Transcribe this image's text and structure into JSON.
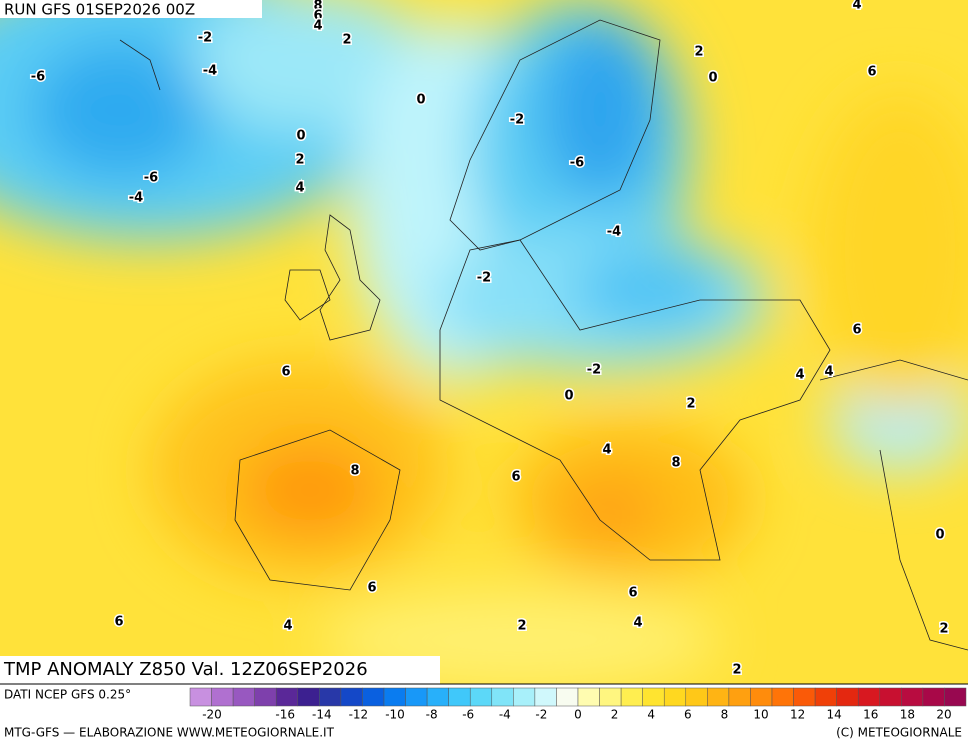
{
  "header": {
    "run": "RUN GFS 01SEP2026 00Z"
  },
  "map": {
    "contour_labels": [
      "8",
      "6",
      "4",
      "4",
      "-2",
      "2",
      "-4",
      "-6",
      "0",
      "0",
      "2",
      "-6",
      "-4",
      "4",
      "-2",
      "-6",
      "-4",
      "-2",
      "2",
      "0",
      "6",
      "6",
      "-2",
      "0",
      "2",
      "4",
      "4",
      "6",
      "8",
      "4",
      "8",
      "6",
      "0",
      "6",
      "6",
      "6",
      "4",
      "2",
      "4",
      "2",
      "2"
    ]
  },
  "footer": {
    "title": "TMP ANOMALY Z850 Val. 12Z06SEP2026",
    "source": "DATI NCEP GFS 0.25°",
    "credit": "MTG-GFS — ELABORAZIONE WWW.METEOGIORNALE.IT",
    "copyright": "(C) METEOGIORNALE"
  },
  "colorbar": {
    "colors": [
      "#c890e0",
      "#b070d0",
      "#9858c0",
      "#7e40ac",
      "#5a2898",
      "#3c2090",
      "#2838a8",
      "#1448c8",
      "#0a60e0",
      "#0a7cf0",
      "#1898f8",
      "#28b0fa",
      "#40c8fa",
      "#5cd8f8",
      "#80e4f8",
      "#a8f0fa",
      "#d0f8fc",
      "#f8fcf0",
      "#fffcb0",
      "#fff680",
      "#ffee50",
      "#ffe430",
      "#ffd820",
      "#ffc818",
      "#ffb414",
      "#ffa010",
      "#ff8c0c",
      "#ff7408",
      "#fa5a08",
      "#f04008",
      "#e42810",
      "#d81820",
      "#c81030",
      "#b80c40",
      "#a80848",
      "#980850"
    ],
    "ticks": [
      -20,
      -16,
      -14,
      -12,
      -10,
      -8,
      -6,
      -4,
      -2,
      0,
      2,
      4,
      6,
      8,
      10,
      12,
      14,
      16,
      18,
      20
    ]
  }
}
